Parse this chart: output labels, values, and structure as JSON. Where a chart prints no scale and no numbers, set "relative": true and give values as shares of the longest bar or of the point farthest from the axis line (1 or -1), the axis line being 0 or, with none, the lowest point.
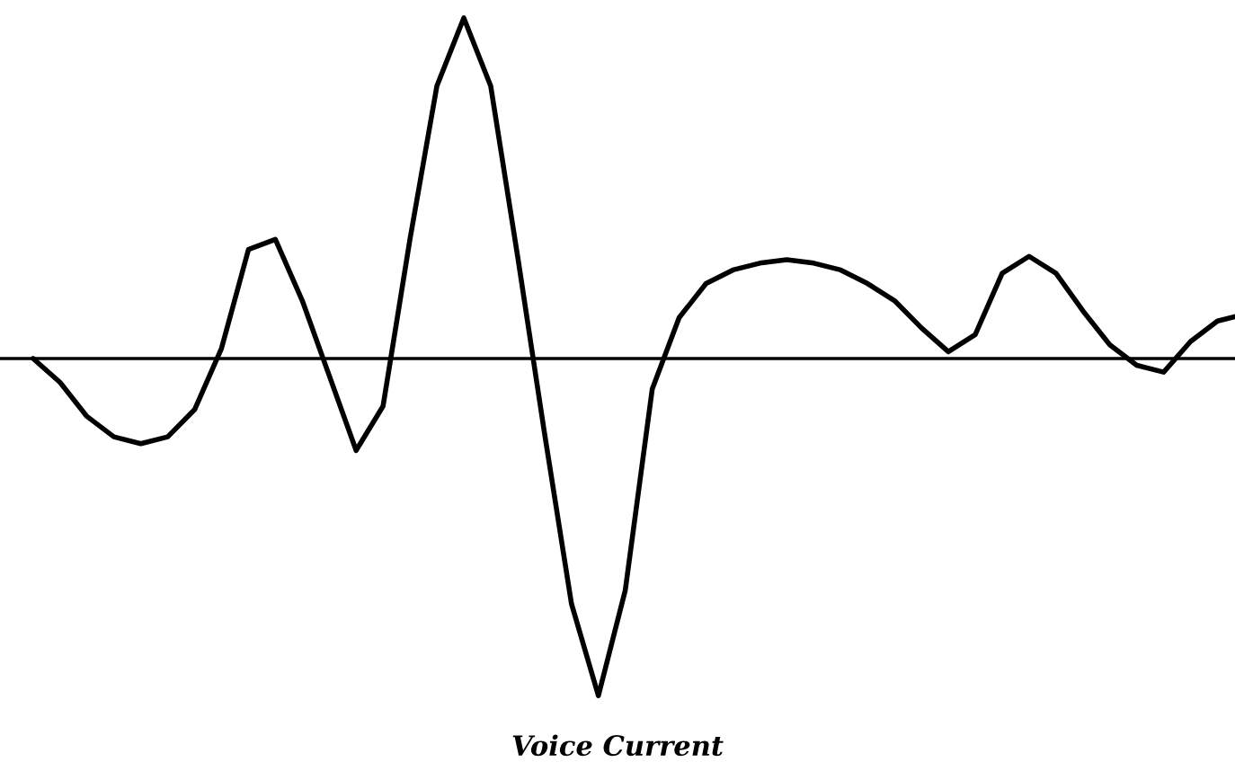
{
  "chart_data": {
    "type": "line",
    "relative": true,
    "title": "Voice Current",
    "categories": [
      null,
      null,
      null,
      null,
      null,
      null,
      null,
      null,
      null,
      null,
      null,
      null,
      null,
      null,
      null,
      null,
      null,
      null,
      null,
      null,
      null,
      null,
      null,
      null,
      null,
      null,
      null,
      null,
      null,
      null,
      null,
      null,
      null,
      null,
      null,
      null,
      null,
      null,
      null,
      null,
      null,
      null,
      null,
      null,
      null,
      null
    ],
    "series": [
      {
        "color": "#000000",
        "values": [
          0,
          -0.07,
          -0.17,
          -0.23,
          -0.25,
          -0.23,
          -0.15,
          0.03,
          0.32,
          0.35,
          0.17,
          -0.05,
          -0.27,
          -0.14,
          0.35,
          0.8,
          1,
          0.8,
          0.3,
          -0.22,
          -0.72,
          -0.99,
          -0.68,
          -0.09,
          0.12,
          0.22,
          0.26,
          0.28,
          0.29,
          0.28,
          0.26,
          0.22,
          0.17,
          0.09,
          0.02,
          0.07,
          0.25,
          0.3,
          0.25,
          0.14,
          0.04,
          -0.02,
          -0.04,
          0.05,
          0.11,
          0.13
        ]
      }
    ],
    "tick_labels": false
  }
}
